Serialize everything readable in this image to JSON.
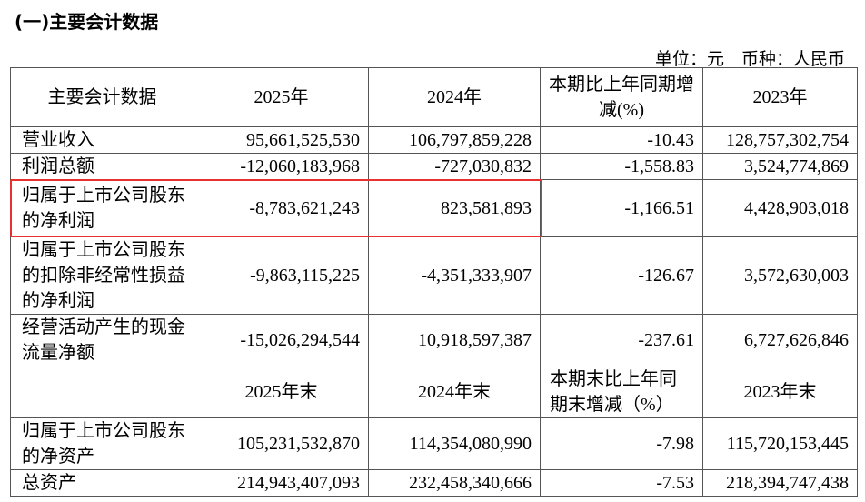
{
  "title": "(一)主要会计数据",
  "unit_note": "单位：元　币种：人民币",
  "header1": [
    "主要会计数据",
    "2025年",
    "2024年",
    "本期比上年同期增减(%)",
    "2023年"
  ],
  "rows1": [
    {
      "label": "营业收入",
      "v2025": "95,661,525,530",
      "v2024": "106,797,859,228",
      "change": "-10.43",
      "v2023": "128,757,302,754"
    },
    {
      "label": "利润总额",
      "v2025": "-12,060,183,968",
      "v2024": "-727,030,832",
      "change": "-1,558.83",
      "v2023": "3,524,774,869"
    },
    {
      "label": "归属于上市公司股东的净利润",
      "v2025": "-8,783,621,243",
      "v2024": "823,581,893",
      "change": "-1,166.51",
      "v2023": "4,428,903,018",
      "highlighted": true
    },
    {
      "label": "归属于上市公司股东的扣除非经常性损益的净利润",
      "v2025": "-9,863,115,225",
      "v2024": "-4,351,333,907",
      "change": "-126.67",
      "v2023": "3,572,630,003"
    },
    {
      "label": "经营活动产生的现金流量净额",
      "v2025": "-15,026,294,544",
      "v2024": "10,918,597,387",
      "change": "-237.61",
      "v2023": "6,727,626,846"
    }
  ],
  "header2": [
    "",
    "2025年末",
    "2024年末",
    "本期末比上年同期末增减（%）",
    "2023年末"
  ],
  "rows2": [
    {
      "label": "归属于上市公司股东的净资产",
      "v2025": "105,231,532,870",
      "v2024": "114,354,080,990",
      "change": "-7.98",
      "v2023": "115,720,153,445"
    },
    {
      "label": "总资产",
      "v2025": "214,943,407,093",
      "v2024": "232,458,340,666",
      "change": "-7.53",
      "v2023": "218,394,747,438"
    }
  ],
  "highlight_color": "#e8302e"
}
